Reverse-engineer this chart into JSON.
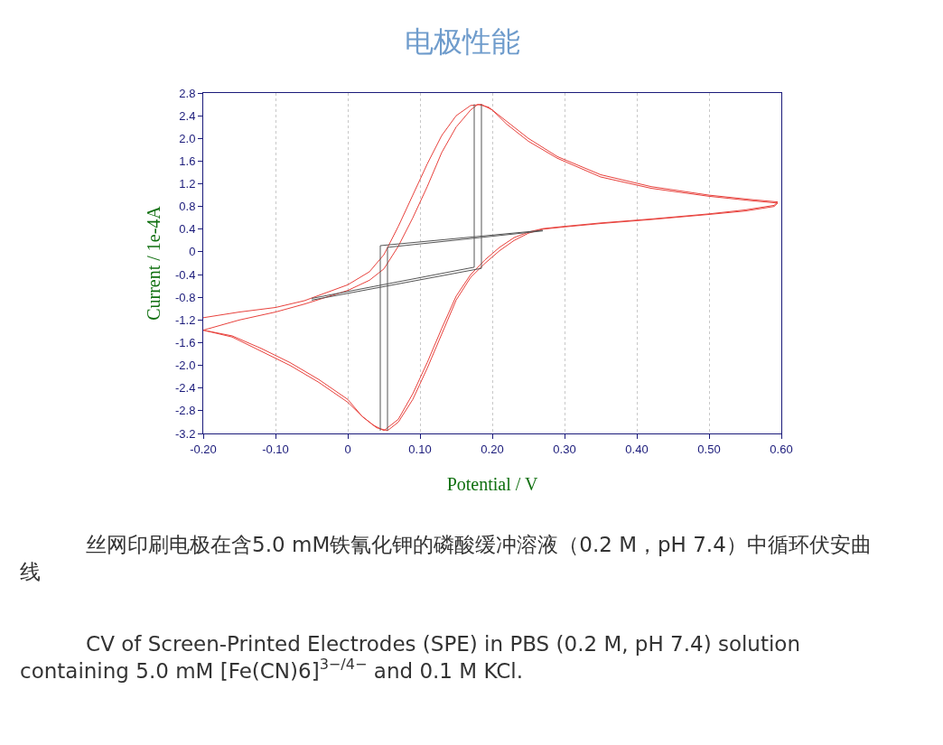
{
  "chart_data": {
    "type": "line",
    "title": "电极性能",
    "xlabel": "Potential / V",
    "ylabel": "Current / 1e-4A",
    "annotations": [
      "丝网印刷电极在含5.0 mM铁氰化钾的磷酸缓冲溶液（0.2 M，pH 7.4）中循环伏安曲线",
      "CV of Screen-Printed Electrodes (SPE) in PBS (0.2 M, pH 7.4) solution containing 5.0 mM [Fe(CN)6]$^{3−/4−}$ and 0.1 M KCl."
    ],
    "xlim": [
      -0.2,
      0.6
    ],
    "ylim": [
      -3.2,
      2.8
    ],
    "xticks": [
      {
        "value": -0.2,
        "label": "-0.20"
      },
      {
        "value": -0.1,
        "label": "-0.10"
      },
      0,
      {
        "value": 0.1,
        "label": "0.10"
      },
      {
        "value": 0.2,
        "label": "0.20"
      },
      {
        "value": 0.3,
        "label": "0.30"
      },
      {
        "value": 0.4,
        "label": "0.40"
      },
      {
        "value": 0.5,
        "label": "0.50"
      },
      {
        "value": 0.6,
        "label": "0.60"
      }
    ],
    "yticks": [
      -3.2,
      -2.8,
      -2.4,
      {
        "value": -2.0,
        "label": "-2.0"
      },
      -1.6,
      -1.2,
      -0.8,
      -0.4,
      0,
      0.4,
      0.8,
      1.2,
      1.6,
      {
        "value": 2.0,
        "label": "2.0"
      },
      2.4,
      2.8
    ],
    "grid": "x",
    "marker": "none",
    "line_style": "solid",
    "series": [
      {
        "color": "#e8413c",
        "x": [
          -0.2,
          -0.15,
          -0.1,
          -0.06,
          -0.03,
          0.0,
          0.03,
          0.05,
          0.07,
          0.09,
          0.11,
          0.13,
          0.15,
          0.17,
          0.185,
          0.2,
          0.22,
          0.25,
          0.29,
          0.35,
          0.42,
          0.5,
          0.56,
          0.595,
          0.59,
          0.55,
          0.5,
          0.42,
          0.35,
          0.3,
          0.27,
          0.25,
          0.23,
          0.21,
          0.19,
          0.17,
          0.15,
          0.13,
          0.11,
          0.09,
          0.07,
          0.055,
          0.04,
          0.02,
          0.0,
          -0.04,
          -0.08,
          -0.12,
          -0.16,
          -0.2,
          -0.15,
          -0.1,
          -0.06,
          -0.03,
          0.0,
          0.03,
          0.05,
          0.07,
          0.09,
          0.11,
          0.13,
          0.15,
          0.17,
          0.18,
          0.195,
          0.22,
          0.25,
          0.29,
          0.35,
          0.42,
          0.5,
          0.56,
          0.595,
          0.59,
          0.55,
          0.5,
          0.42,
          0.35,
          0.3,
          0.27,
          0.25,
          0.23,
          0.21,
          0.19,
          0.17,
          0.15,
          0.13,
          0.11,
          0.09,
          0.07,
          0.05,
          0.035,
          0.02,
          0.0,
          -0.04,
          -0.08,
          -0.12,
          -0.16,
          -0.2
        ],
        "values": [
          -1.16,
          -1.06,
          -0.98,
          -0.86,
          -0.72,
          -0.58,
          -0.35,
          -0.05,
          0.45,
          1.0,
          1.55,
          2.05,
          2.4,
          2.58,
          2.6,
          2.5,
          2.25,
          1.95,
          1.65,
          1.32,
          1.12,
          0.98,
          0.9,
          0.86,
          0.8,
          0.72,
          0.66,
          0.57,
          0.5,
          0.44,
          0.4,
          0.33,
          0.2,
          0.02,
          -0.2,
          -0.45,
          -0.85,
          -1.45,
          -2.05,
          -2.6,
          -3.0,
          -3.15,
          -3.1,
          -2.9,
          -2.65,
          -2.3,
          -2.0,
          -1.75,
          -1.5,
          -1.38,
          -1.2,
          -1.06,
          -0.92,
          -0.8,
          -0.68,
          -0.5,
          -0.3,
          0.1,
          0.6,
          1.15,
          1.75,
          2.2,
          2.5,
          2.6,
          2.55,
          2.3,
          2.0,
          1.68,
          1.36,
          1.15,
          1.0,
          0.92,
          0.88,
          0.82,
          0.74,
          0.67,
          0.58,
          0.51,
          0.45,
          0.41,
          0.35,
          0.25,
          0.08,
          -0.14,
          -0.4,
          -0.78,
          -1.35,
          -1.95,
          -2.5,
          -2.95,
          -3.15,
          -3.05,
          -2.9,
          -2.6,
          -2.25,
          -1.95,
          -1.7,
          -1.48,
          -1.38
        ]
      },
      {
        "color": "#555555",
        "x": [
          -0.05,
          0.175,
          0.175
        ],
        "values": [
          -0.82,
          -0.27,
          2.6
        ]
      },
      {
        "color": "#555555",
        "x": [
          0.045,
          0.045,
          0.27
        ],
        "values": [
          -3.15,
          0.11,
          0.38
        ]
      },
      {
        "color": "#555555",
        "x": [
          -0.05,
          0.185,
          0.185
        ],
        "values": [
          -0.85,
          -0.29,
          2.6
        ]
      },
      {
        "color": "#555555",
        "x": [
          0.055,
          0.055,
          0.27
        ],
        "values": [
          -3.15,
          0.08,
          0.37
        ]
      }
    ]
  }
}
